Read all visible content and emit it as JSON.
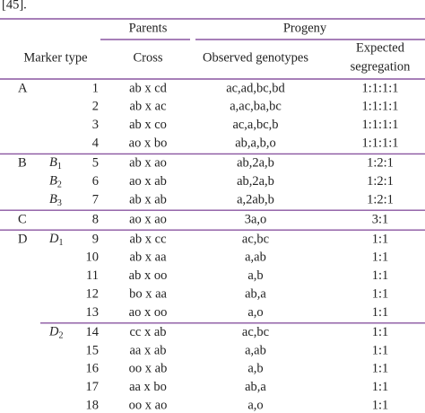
{
  "caption_fragment": "[45].",
  "header": {
    "parents": "Parents",
    "progeny": "Progeny",
    "marker_type": "Marker type",
    "cross": "Cross",
    "observed": "Observed genotypes",
    "expected": [
      "Expected",
      "segregation"
    ]
  },
  "groups": [
    {
      "label": "A",
      "subgroups": [
        {
          "rows": [
            [
              1,
              "ab x cd",
              "ac,ad,bc,bd",
              "1:1:1:1"
            ],
            [
              2,
              "ab x ac",
              "a,ac,ba,bc",
              "1:1:1:1"
            ],
            [
              3,
              "ab x co",
              "ac,a,bc,b",
              "1:1:1:1"
            ],
            [
              4,
              "ao x bo",
              "ab,a,b,o",
              "1:1:1:1"
            ]
          ]
        }
      ]
    },
    {
      "label": "B",
      "subgroups": [
        {
          "letter": "B",
          "index": "1",
          "rows": [
            [
              5,
              "ab x ao",
              "ab,2a,b",
              "1:2:1"
            ]
          ]
        },
        {
          "letter": "B",
          "index": "2",
          "rows": [
            [
              6,
              "ao x ab",
              "ab,2a,b",
              "1:2:1"
            ]
          ]
        },
        {
          "letter": "B",
          "index": "3",
          "rows": [
            [
              7,
              "ab x ab",
              "a,2ab,b",
              "1:2:1"
            ]
          ]
        }
      ]
    },
    {
      "label": "C",
      "subgroups": [
        {
          "rows": [
            [
              8,
              "ao x ao",
              "3a,o",
              "3:1"
            ]
          ]
        }
      ]
    },
    {
      "label": "D",
      "subgroups": [
        {
          "letter": "D",
          "index": "1",
          "rows": [
            [
              9,
              "ab x cc",
              "ac,bc",
              "1:1"
            ],
            [
              10,
              "ab x aa",
              "a,ab",
              "1:1"
            ],
            [
              11,
              "ab x oo",
              "a,b",
              "1:1"
            ],
            [
              12,
              "bo x aa",
              "ab,a",
              "1:1"
            ],
            [
              13,
              "ao x oo",
              "a,o",
              "1:1"
            ]
          ]
        },
        {
          "letter": "D",
          "index": "2",
          "rows": [
            [
              14,
              "cc x ab",
              "ac,bc",
              "1:1"
            ],
            [
              15,
              "aa x ab",
              "a,ab",
              "1:1"
            ],
            [
              16,
              "oo x ab",
              "a,b",
              "1:1"
            ],
            [
              17,
              "aa x bo",
              "ab,a",
              "1:1"
            ],
            [
              18,
              "oo x ao",
              "a,o",
              "1:1"
            ]
          ]
        }
      ]
    }
  ]
}
